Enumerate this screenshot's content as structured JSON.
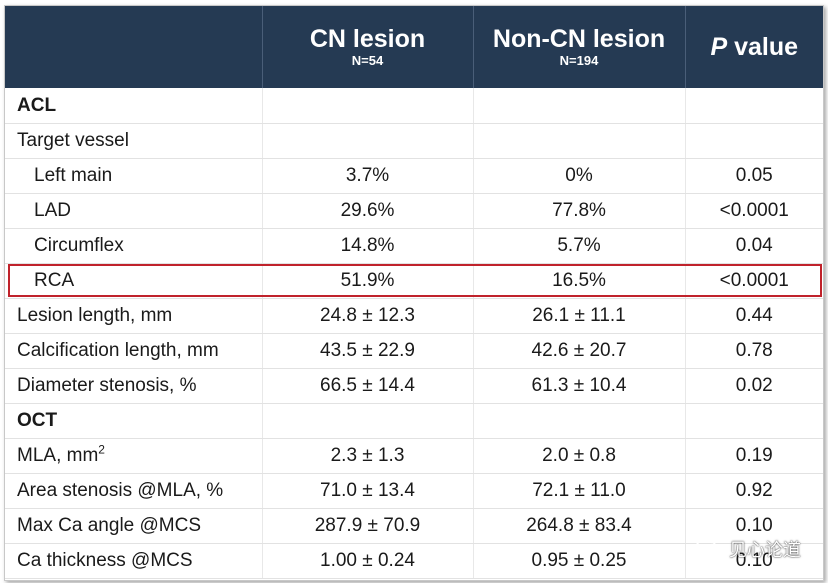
{
  "header": {
    "col1_title": "CN lesion",
    "col1_n": "N=54",
    "col2_title": "Non-CN lesion",
    "col2_n": "N=194",
    "pvalue_italic": "P",
    "pvalue_rest": " value"
  },
  "rows": [
    {
      "label": "ACL",
      "cn": "",
      "noncn": "",
      "p": ""
    },
    {
      "label": "Target vessel",
      "cn": "",
      "noncn": "",
      "p": ""
    },
    {
      "label": "Left main",
      "cn": "3.7%",
      "noncn": "0%",
      "p": "0.05"
    },
    {
      "label": "LAD",
      "cn": "29.6%",
      "noncn": "77.8%",
      "p": "<0.0001"
    },
    {
      "label": "Circumflex",
      "cn": "14.8%",
      "noncn": "5.7%",
      "p": "0.04"
    },
    {
      "label": "RCA",
      "cn": "51.9%",
      "noncn": "16.5%",
      "p": "<0.0001"
    },
    {
      "label": "Lesion length, mm",
      "cn": "24.8 ± 12.3",
      "noncn": "26.1 ± 11.1",
      "p": "0.44"
    },
    {
      "label": "Calcification length, mm",
      "cn": "43.5 ± 22.9",
      "noncn": "42.6 ± 20.7",
      "p": "0.78"
    },
    {
      "label": "Diameter stenosis, %",
      "cn": "66.5 ± 14.4",
      "noncn": "61.3 ± 10.4",
      "p": "0.02"
    },
    {
      "label": "OCT",
      "cn": "",
      "noncn": "",
      "p": ""
    },
    {
      "label": "MLA, mm",
      "label_sup": "2",
      "cn": "2.3 ± 1.3",
      "noncn": "2.0 ± 0.8",
      "p": "0.19"
    },
    {
      "label": "Area stenosis @MLA, %",
      "cn": "71.0 ± 13.4",
      "noncn": "72.1 ± 11.0",
      "p": "0.92"
    },
    {
      "label": "Max Ca angle @MCS",
      "cn": "287.9 ± 70.9",
      "noncn": "264.8 ± 83.4",
      "p": "0.10"
    },
    {
      "label": "Ca thickness @MCS",
      "cn": "1.00 ± 0.24",
      "noncn": "0.95 ± 0.25",
      "p": "0.10"
    }
  ],
  "watermark": {
    "text": "见心论道",
    "icon": "wechat-icon"
  },
  "colors": {
    "header_bg": "#253a53",
    "highlight_border": "#c0222b"
  }
}
